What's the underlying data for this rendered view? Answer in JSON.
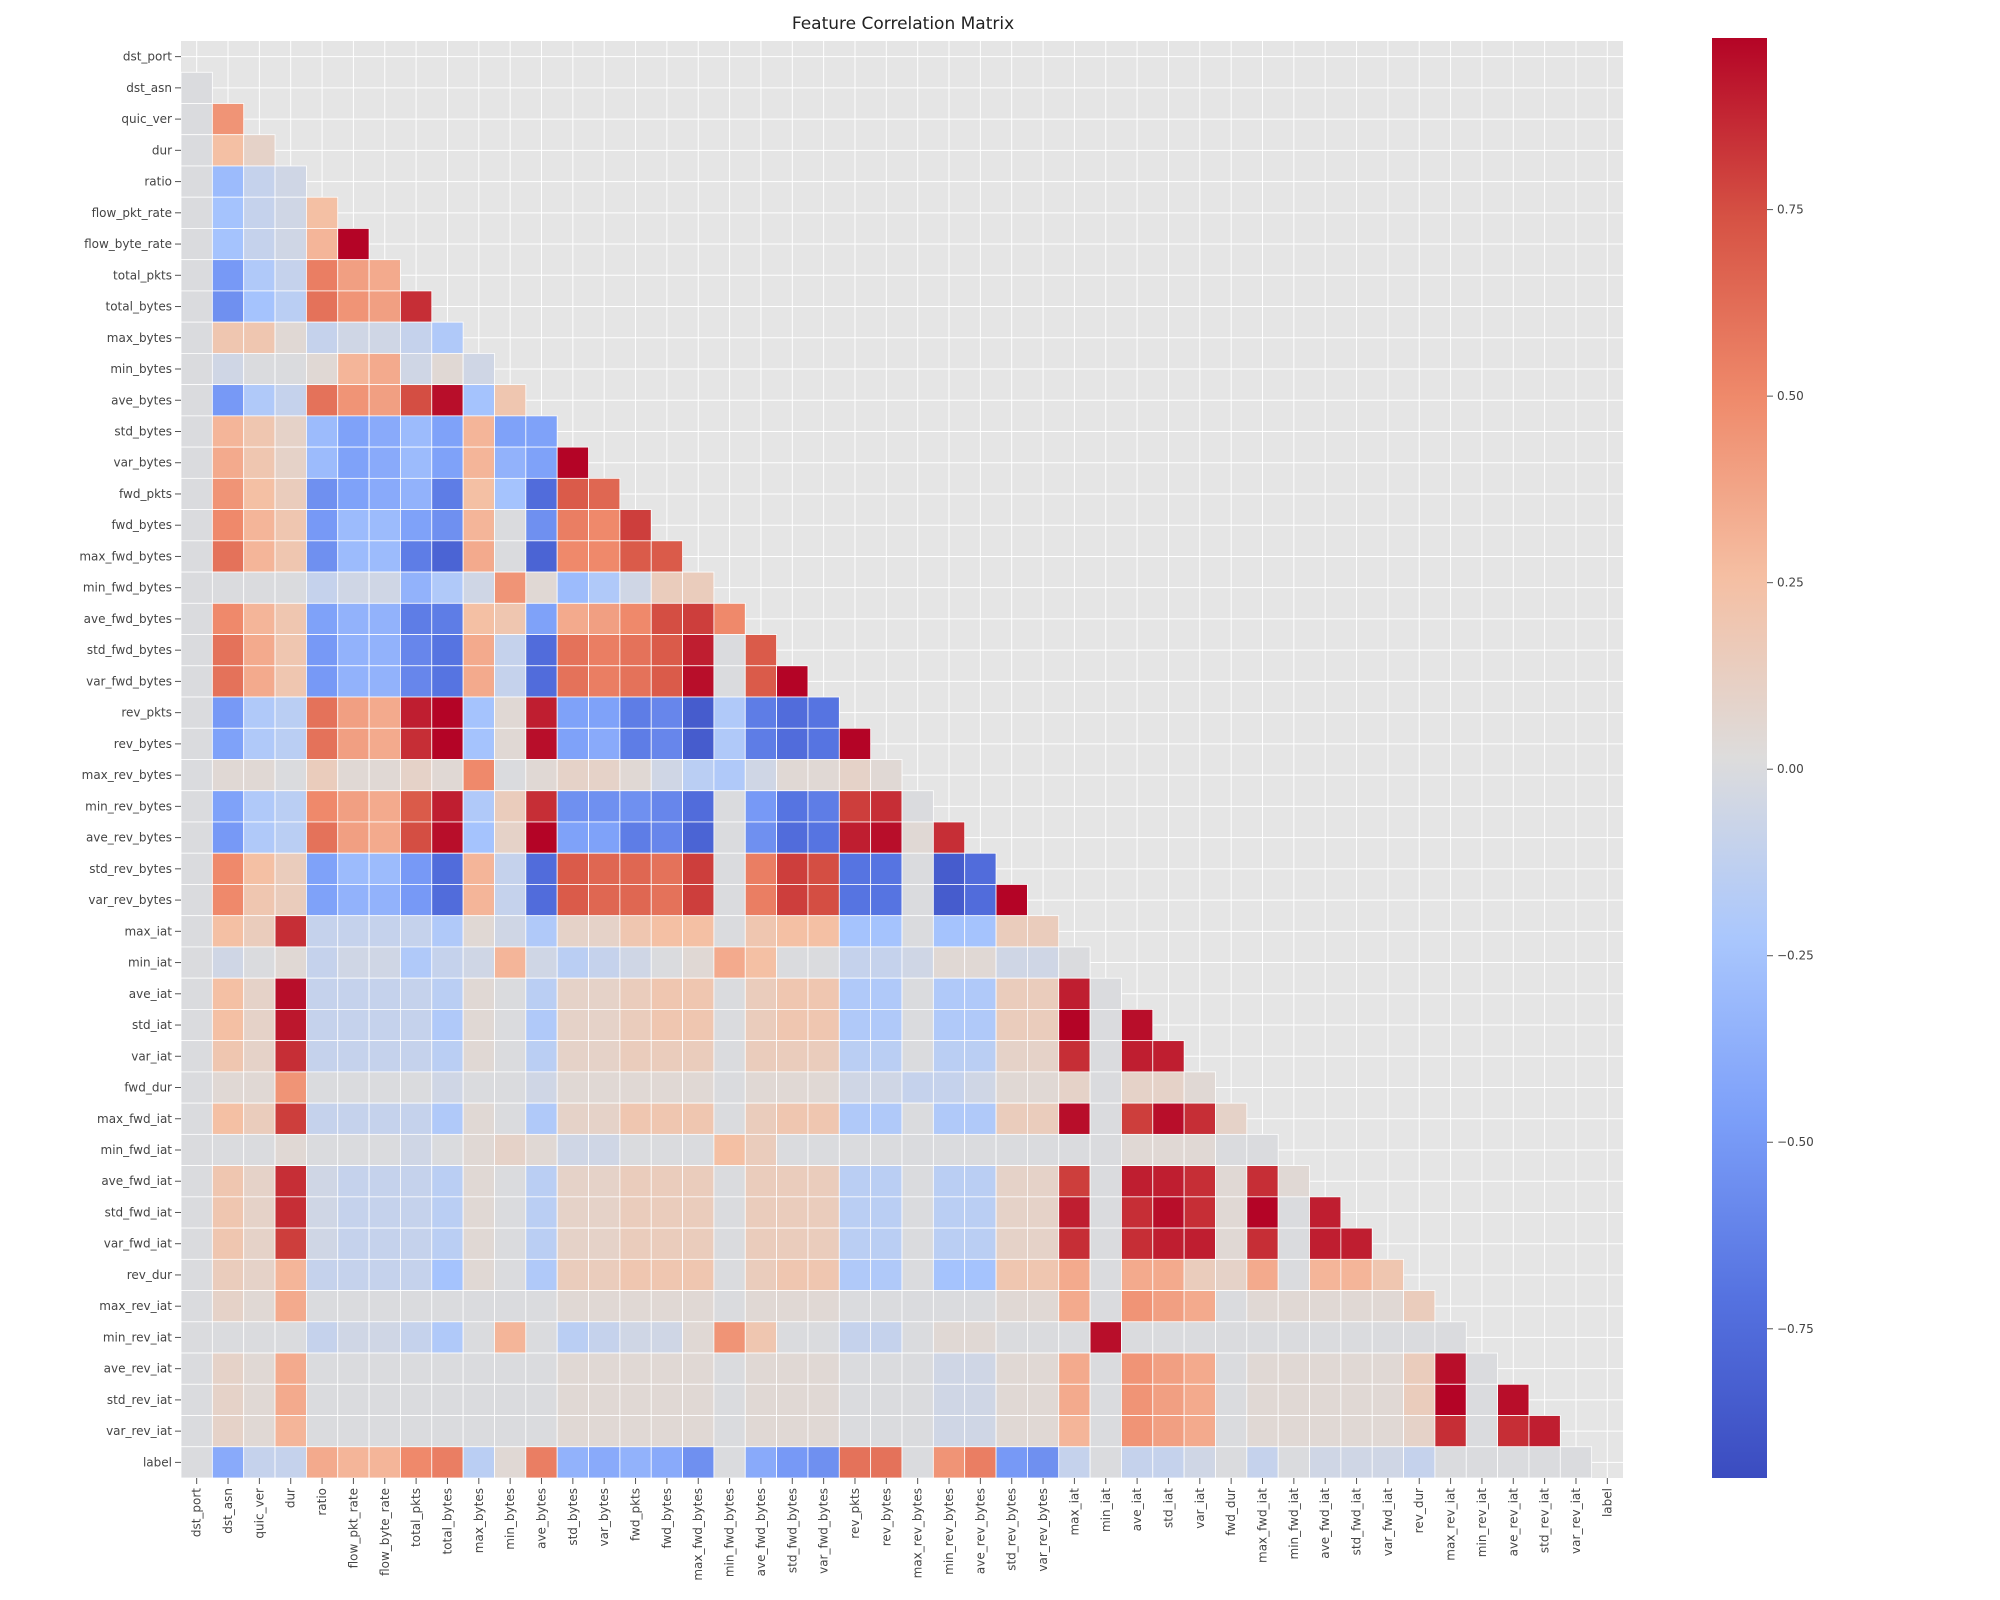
{
  "chart_data": {
    "type": "heatmap",
    "title": "Feature Correlation Matrix",
    "mask": "upper-triangle-and-diagonal",
    "labels": [
      "dst_port",
      "dst_asn",
      "quic_ver",
      "dur",
      "ratio",
      "flow_pkt_rate",
      "flow_byte_rate",
      "total_pkts",
      "total_bytes",
      "max_bytes",
      "min_bytes",
      "ave_bytes",
      "std_bytes",
      "var_bytes",
      "fwd_pkts",
      "fwd_bytes",
      "max_fwd_bytes",
      "min_fwd_bytes",
      "ave_fwd_bytes",
      "std_fwd_bytes",
      "var_fwd_bytes",
      "rev_pkts",
      "rev_bytes",
      "max_rev_bytes",
      "min_rev_bytes",
      "ave_rev_bytes",
      "std_rev_bytes",
      "var_rev_bytes",
      "max_iat",
      "min_iat",
      "ave_iat",
      "std_iat",
      "var_iat",
      "fwd_dur",
      "max_fwd_iat",
      "min_fwd_iat",
      "ave_fwd_iat",
      "std_fwd_iat",
      "var_fwd_iat",
      "rev_dur",
      "max_rev_iat",
      "min_rev_iat",
      "ave_rev_iat",
      "std_rev_iat",
      "var_rev_iat",
      "label"
    ],
    "colormap": "coolwarm",
    "vmin": -0.95,
    "vmax": 0.98,
    "colorbar_ticks": [
      -0.75,
      -0.5,
      -0.25,
      0.0,
      0.25,
      0.5,
      0.75
    ],
    "colorbar_tick_labels": [
      "−0.75",
      "−0.50",
      "−0.25",
      "0.00",
      "0.25",
      "0.50",
      "0.75"
    ],
    "values": [
      [],
      [
        0
      ],
      [
        0,
        0.45
      ],
      [
        0,
        0.25,
        0.1
      ],
      [
        0,
        -0.3,
        -0.1,
        -0.05
      ],
      [
        0,
        -0.25,
        -0.1,
        -0.05,
        0.25
      ],
      [
        0,
        -0.25,
        -0.1,
        -0.05,
        0.3,
        0.98
      ],
      [
        0,
        -0.5,
        -0.2,
        -0.1,
        0.55,
        0.4,
        0.35
      ],
      [
        0,
        -0.55,
        -0.25,
        -0.15,
        0.6,
        0.45,
        0.4,
        0.85
      ],
      [
        0,
        0.2,
        0.2,
        0.05,
        -0.1,
        -0.05,
        -0.05,
        -0.1,
        -0.2
      ],
      [
        0,
        -0.05,
        0,
        0,
        0.05,
        0.3,
        0.35,
        -0.05,
        0.05,
        -0.05
      ],
      [
        0,
        -0.5,
        -0.2,
        -0.1,
        0.6,
        0.45,
        0.4,
        0.75,
        0.95,
        -0.25,
        0.2
      ],
      [
        0,
        0.3,
        0.2,
        0.1,
        -0.3,
        -0.45,
        -0.4,
        -0.3,
        -0.45,
        0.3,
        -0.45,
        -0.45
      ],
      [
        0,
        0.35,
        0.2,
        0.1,
        -0.3,
        -0.45,
        -0.4,
        -0.3,
        -0.45,
        0.3,
        -0.35,
        -0.45,
        0.98
      ],
      [
        0,
        0.45,
        0.25,
        0.15,
        -0.55,
        -0.45,
        -0.4,
        -0.35,
        -0.65,
        0.25,
        -0.25,
        -0.75,
        0.7,
        0.65
      ],
      [
        0,
        0.5,
        0.3,
        0.2,
        -0.5,
        -0.3,
        -0.3,
        -0.45,
        -0.55,
        0.3,
        0,
        -0.55,
        0.55,
        0.5,
        0.8
      ],
      [
        0,
        0.6,
        0.3,
        0.2,
        -0.55,
        -0.3,
        -0.3,
        -0.65,
        -0.8,
        0.35,
        0,
        -0.8,
        0.5,
        0.5,
        0.7,
        0.7
      ],
      [
        0,
        0,
        0,
        0,
        -0.1,
        -0.05,
        -0.05,
        -0.35,
        -0.2,
        -0.05,
        0.45,
        0.05,
        -0.3,
        -0.2,
        -0.05,
        0.15,
        0.15
      ],
      [
        0,
        0.5,
        0.3,
        0.2,
        -0.45,
        -0.35,
        -0.35,
        -0.65,
        -0.65,
        0.25,
        0.2,
        -0.45,
        0.35,
        0.4,
        0.5,
        0.75,
        0.8,
        0.5
      ],
      [
        0,
        0.6,
        0.35,
        0.2,
        -0.5,
        -0.35,
        -0.35,
        -0.6,
        -0.7,
        0.35,
        -0.1,
        -0.75,
        0.6,
        0.55,
        0.6,
        0.7,
        0.9,
        0,
        0.7
      ],
      [
        0,
        0.6,
        0.35,
        0.2,
        -0.5,
        -0.35,
        -0.35,
        -0.6,
        -0.7,
        0.35,
        -0.1,
        -0.75,
        0.6,
        0.55,
        0.6,
        0.7,
        0.95,
        0,
        0.7,
        0.98
      ],
      [
        0,
        -0.5,
        -0.2,
        -0.15,
        0.6,
        0.4,
        0.35,
        0.9,
        0.98,
        -0.25,
        0.05,
        0.9,
        -0.45,
        -0.45,
        -0.65,
        -0.6,
        -0.85,
        -0.2,
        -0.65,
        -0.75,
        -0.7
      ],
      [
        0,
        -0.45,
        -0.2,
        -0.15,
        0.6,
        0.4,
        0.35,
        0.85,
        0.98,
        -0.25,
        0.05,
        0.95,
        -0.45,
        -0.4,
        -0.65,
        -0.6,
        -0.85,
        -0.2,
        -0.65,
        -0.75,
        -0.7,
        0.98
      ],
      [
        0,
        0.05,
        0.05,
        0,
        0.15,
        0.05,
        0.05,
        0.1,
        0.05,
        0.5,
        0,
        0.05,
        0.1,
        0.1,
        0.05,
        -0.05,
        -0.15,
        -0.2,
        -0.05,
        0.05,
        0.05,
        0.1,
        0.05
      ],
      [
        0,
        -0.45,
        -0.2,
        -0.15,
        0.5,
        0.4,
        0.35,
        0.7,
        0.9,
        -0.2,
        0.15,
        0.85,
        -0.55,
        -0.55,
        -0.55,
        -0.6,
        -0.75,
        0,
        -0.5,
        -0.7,
        -0.65,
        0.8,
        0.85,
        0
      ],
      [
        0,
        -0.5,
        -0.2,
        -0.15,
        0.6,
        0.4,
        0.35,
        0.75,
        0.95,
        -0.25,
        0.1,
        0.98,
        -0.45,
        -0.45,
        -0.65,
        -0.6,
        -0.8,
        0,
        -0.55,
        -0.75,
        -0.7,
        0.9,
        0.95,
        0.05,
        0.85
      ],
      [
        0,
        0.5,
        0.25,
        0.15,
        -0.45,
        -0.3,
        -0.3,
        -0.5,
        -0.75,
        0.3,
        -0.1,
        -0.75,
        0.7,
        0.65,
        0.65,
        0.6,
        0.8,
        0,
        0.55,
        0.8,
        0.75,
        -0.7,
        -0.7,
        0,
        -0.85,
        -0.75
      ],
      [
        0,
        0.5,
        0.2,
        0.15,
        -0.45,
        -0.35,
        -0.35,
        -0.5,
        -0.75,
        0.3,
        -0.1,
        -0.75,
        0.7,
        0.65,
        0.65,
        0.6,
        0.8,
        0,
        0.55,
        0.8,
        0.75,
        -0.7,
        -0.7,
        0,
        -0.85,
        -0.75,
        0.98
      ],
      [
        0,
        0.25,
        0.15,
        0.85,
        -0.1,
        -0.1,
        -0.1,
        -0.1,
        -0.2,
        0.05,
        -0.05,
        -0.2,
        0.1,
        0.1,
        0.2,
        0.25,
        0.25,
        0,
        0.2,
        0.25,
        0.25,
        -0.25,
        -0.25,
        0,
        -0.25,
        -0.25,
        0.15,
        0.15
      ],
      [
        0,
        -0.05,
        0,
        0.05,
        -0.1,
        -0.05,
        -0.05,
        -0.2,
        -0.1,
        -0.05,
        0.3,
        -0.05,
        -0.15,
        -0.1,
        -0.05,
        0,
        0.05,
        0.35,
        0.25,
        0,
        0,
        -0.1,
        -0.1,
        -0.05,
        0.05,
        0.05,
        -0.05,
        -0.05,
        0
      ],
      [
        0,
        0.25,
        0.1,
        0.95,
        -0.1,
        -0.1,
        -0.1,
        -0.1,
        -0.15,
        0.05,
        0,
        -0.15,
        0.1,
        0.1,
        0.15,
        0.2,
        0.2,
        0,
        0.15,
        0.2,
        0.2,
        -0.2,
        -0.2,
        0,
        -0.2,
        -0.2,
        0.15,
        0.15,
        0.9,
        0
      ],
      [
        0,
        0.25,
        0.1,
        0.92,
        -0.1,
        -0.1,
        -0.1,
        -0.1,
        -0.2,
        0.05,
        0,
        -0.2,
        0.1,
        0.1,
        0.15,
        0.2,
        0.2,
        0,
        0.15,
        0.2,
        0.2,
        -0.2,
        -0.2,
        0,
        -0.2,
        -0.2,
        0.15,
        0.15,
        0.98,
        0,
        0.95
      ],
      [
        0,
        0.2,
        0.1,
        0.85,
        -0.1,
        -0.1,
        -0.1,
        -0.1,
        -0.15,
        0.05,
        0,
        -0.15,
        0.1,
        0.1,
        0.15,
        0.15,
        0.15,
        0,
        0.15,
        0.15,
        0.15,
        -0.15,
        -0.15,
        0,
        -0.15,
        -0.15,
        0.1,
        0.1,
        0.85,
        0,
        0.9,
        0.9
      ],
      [
        0,
        0.05,
        0.05,
        0.45,
        0,
        0,
        0,
        0,
        -0.05,
        0,
        0,
        -0.05,
        0.05,
        0.05,
        0.05,
        0.05,
        0.05,
        0,
        0.05,
        0.05,
        0.05,
        -0.05,
        -0.05,
        -0.1,
        -0.1,
        -0.05,
        0.05,
        0.05,
        0.1,
        0,
        0.1,
        0.1,
        0.05
      ],
      [
        0,
        0.25,
        0.15,
        0.8,
        -0.1,
        -0.1,
        -0.1,
        -0.1,
        -0.2,
        0.05,
        0,
        -0.2,
        0.1,
        0.1,
        0.2,
        0.2,
        0.2,
        0,
        0.15,
        0.2,
        0.2,
        -0.2,
        -0.2,
        0,
        -0.2,
        -0.2,
        0.15,
        0.15,
        0.95,
        0,
        0.8,
        0.95,
        0.85,
        0.1
      ],
      [
        0,
        0,
        0,
        0.05,
        0,
        0,
        0,
        -0.05,
        0,
        0.05,
        0.1,
        0.05,
        -0.05,
        -0.05,
        0,
        0,
        0,
        0.25,
        0.15,
        0,
        0,
        0,
        0,
        0,
        0,
        0,
        0,
        0,
        0,
        0,
        0.05,
        0.05,
        0.05,
        0,
        0
      ],
      [
        0,
        0.2,
        0.1,
        0.85,
        -0.05,
        -0.1,
        -0.1,
        -0.1,
        -0.15,
        0.05,
        0,
        -0.15,
        0.1,
        0.1,
        0.15,
        0.15,
        0.15,
        0,
        0.15,
        0.15,
        0.15,
        -0.15,
        -0.15,
        0,
        -0.15,
        -0.15,
        0.1,
        0.1,
        0.8,
        0,
        0.9,
        0.9,
        0.85,
        0.05,
        0.85,
        0.05
      ],
      [
        0,
        0.2,
        0.1,
        0.85,
        -0.05,
        -0.1,
        -0.1,
        -0.1,
        -0.15,
        0.05,
        0,
        -0.15,
        0.1,
        0.1,
        0.15,
        0.15,
        0.15,
        0,
        0.15,
        0.15,
        0.15,
        -0.15,
        -0.15,
        0,
        -0.15,
        -0.15,
        0.1,
        0.1,
        0.9,
        0,
        0.85,
        0.95,
        0.85,
        0.05,
        0.98,
        0,
        0.9
      ],
      [
        0,
        0.2,
        0.1,
        0.8,
        -0.05,
        -0.1,
        -0.1,
        -0.1,
        -0.15,
        0.05,
        0,
        -0.15,
        0.1,
        0.1,
        0.15,
        0.15,
        0.15,
        0,
        0.15,
        0.15,
        0.15,
        -0.15,
        -0.15,
        0,
        -0.15,
        -0.15,
        0.1,
        0.1,
        0.85,
        0,
        0.85,
        0.9,
        0.9,
        0.05,
        0.85,
        0,
        0.9,
        0.9
      ],
      [
        0,
        0.15,
        0.1,
        0.3,
        -0.1,
        -0.1,
        -0.1,
        -0.1,
        -0.25,
        0.05,
        0,
        -0.2,
        0.15,
        0.15,
        0.2,
        0.2,
        0.2,
        0,
        0.15,
        0.2,
        0.2,
        -0.2,
        -0.2,
        0,
        -0.25,
        -0.25,
        0.2,
        0.2,
        0.35,
        0,
        0.35,
        0.35,
        0.15,
        0.1,
        0.35,
        0,
        0.3,
        0.3,
        0.2
      ],
      [
        0,
        0.1,
        0.05,
        0.35,
        0,
        0,
        0,
        0,
        0,
        0,
        0,
        0,
        0.05,
        0.05,
        0.05,
        0.05,
        0.05,
        0,
        0.05,
        0.05,
        0.05,
        0,
        0,
        0,
        0,
        0,
        0.05,
        0.05,
        0.35,
        0,
        0.45,
        0.4,
        0.35,
        0,
        0.05,
        0.05,
        0.05,
        0.05,
        0.05,
        0.15
      ],
      [
        0,
        0,
        0,
        0,
        -0.1,
        -0.05,
        -0.05,
        -0.1,
        -0.2,
        0,
        0.3,
        0,
        -0.15,
        -0.1,
        -0.05,
        -0.05,
        0.05,
        0.45,
        0.2,
        0,
        0,
        -0.1,
        -0.1,
        0,
        0.05,
        0.05,
        0,
        0,
        0,
        0.95,
        0,
        0,
        0,
        0,
        0,
        0,
        0,
        0,
        0,
        0,
        0
      ],
      [
        0,
        0.1,
        0.05,
        0.35,
        0,
        0,
        0,
        0,
        0,
        0,
        0,
        0,
        0.05,
        0.05,
        0.05,
        0.05,
        0.05,
        0,
        0.05,
        0.05,
        0.05,
        0,
        0,
        0,
        -0.05,
        -0.05,
        0.05,
        0.05,
        0.35,
        0,
        0.45,
        0.4,
        0.35,
        0,
        0.05,
        0.05,
        0.05,
        0.05,
        0.05,
        0.15,
        0.95,
        0
      ],
      [
        0,
        0.1,
        0.05,
        0.35,
        0,
        0,
        0,
        0,
        0,
        0,
        0,
        0,
        0.05,
        0.05,
        0.05,
        0.05,
        0.05,
        0,
        0.05,
        0.05,
        0.05,
        0,
        0,
        0,
        -0.05,
        -0.05,
        0.05,
        0.05,
        0.35,
        0,
        0.45,
        0.4,
        0.35,
        0,
        0.05,
        0.05,
        0.05,
        0.05,
        0.05,
        0.15,
        0.98,
        0,
        0.95
      ],
      [
        0,
        0.1,
        0.05,
        0.3,
        0,
        0,
        0,
        0,
        0,
        0,
        0,
        0,
        0.05,
        0.05,
        0.05,
        0.05,
        0.05,
        0,
        0.05,
        0.05,
        0.05,
        0,
        0,
        0,
        -0.05,
        -0.05,
        0.05,
        0.05,
        0.3,
        0,
        0.45,
        0.4,
        0.35,
        0,
        0.05,
        0.05,
        0.05,
        0.05,
        0.05,
        0.1,
        0.85,
        0,
        0.85,
        0.9
      ],
      [
        0,
        -0.4,
        -0.1,
        -0.1,
        0.35,
        0.3,
        0.3,
        0.5,
        0.55,
        -0.15,
        0.05,
        0.55,
        -0.35,
        -0.4,
        -0.35,
        -0.4,
        -0.55,
        0,
        -0.4,
        -0.5,
        -0.55,
        0.6,
        0.6,
        0,
        0.45,
        0.55,
        -0.5,
        -0.55,
        -0.1,
        0,
        -0.1,
        -0.1,
        -0.05,
        0,
        -0.1,
        0,
        -0.05,
        -0.05,
        -0.05,
        -0.1,
        0,
        0,
        0,
        0,
        0
      ]
    ]
  }
}
